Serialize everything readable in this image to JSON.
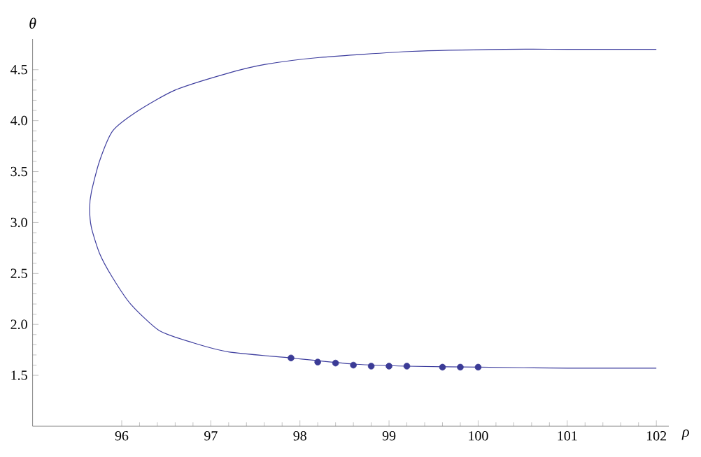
{
  "chart_data": {
    "type": "line",
    "xlabel": "ρ",
    "ylabel": "θ",
    "xlim": [
      95,
      102.14
    ],
    "ylim": [
      1,
      4.8
    ],
    "xticks": [
      96,
      97,
      98,
      99,
      100,
      101,
      102
    ],
    "yticks": [
      1.5,
      {
        "value": 2,
        "label": "2.0"
      },
      2.5,
      {
        "value": 3,
        "label": "3.0"
      },
      3.5,
      {
        "value": 4,
        "label": "4.0"
      },
      4.5
    ],
    "grid": false,
    "series": [
      {
        "color": "#3d3d9e",
        "marker": "none",
        "line_style": "solid",
        "x": [
          102,
          101,
          100.3,
          99.26,
          98.22,
          97.6,
          97.17,
          96.6,
          96.19,
          95.9,
          95.75,
          95.66,
          95.64,
          95.66,
          95.75,
          95.89,
          96.1,
          96.42,
          96.8,
          97.2,
          97.9,
          98.6,
          99.2,
          100,
          101,
          102
        ],
        "values": [
          4.7,
          4.7,
          4.7,
          4.68,
          4.62,
          4.55,
          4.46,
          4.3,
          4.1,
          3.9,
          3.6,
          3.3,
          3.14,
          2.95,
          2.7,
          2.47,
          2.2,
          1.94,
          1.82,
          1.73,
          1.67,
          1.61,
          1.59,
          1.58,
          1.57,
          1.57
        ]
      },
      {
        "type": "scatter",
        "color": "#3b3b96",
        "marker": "circle",
        "x": [
          97.9,
          98.2,
          98.4,
          98.6,
          98.8,
          99.0,
          99.2,
          99.6,
          99.8,
          100.0
        ],
        "values": [
          1.67,
          1.63,
          1.62,
          1.6,
          1.59,
          1.59,
          1.59,
          1.58,
          1.58,
          1.58
        ]
      }
    ]
  }
}
